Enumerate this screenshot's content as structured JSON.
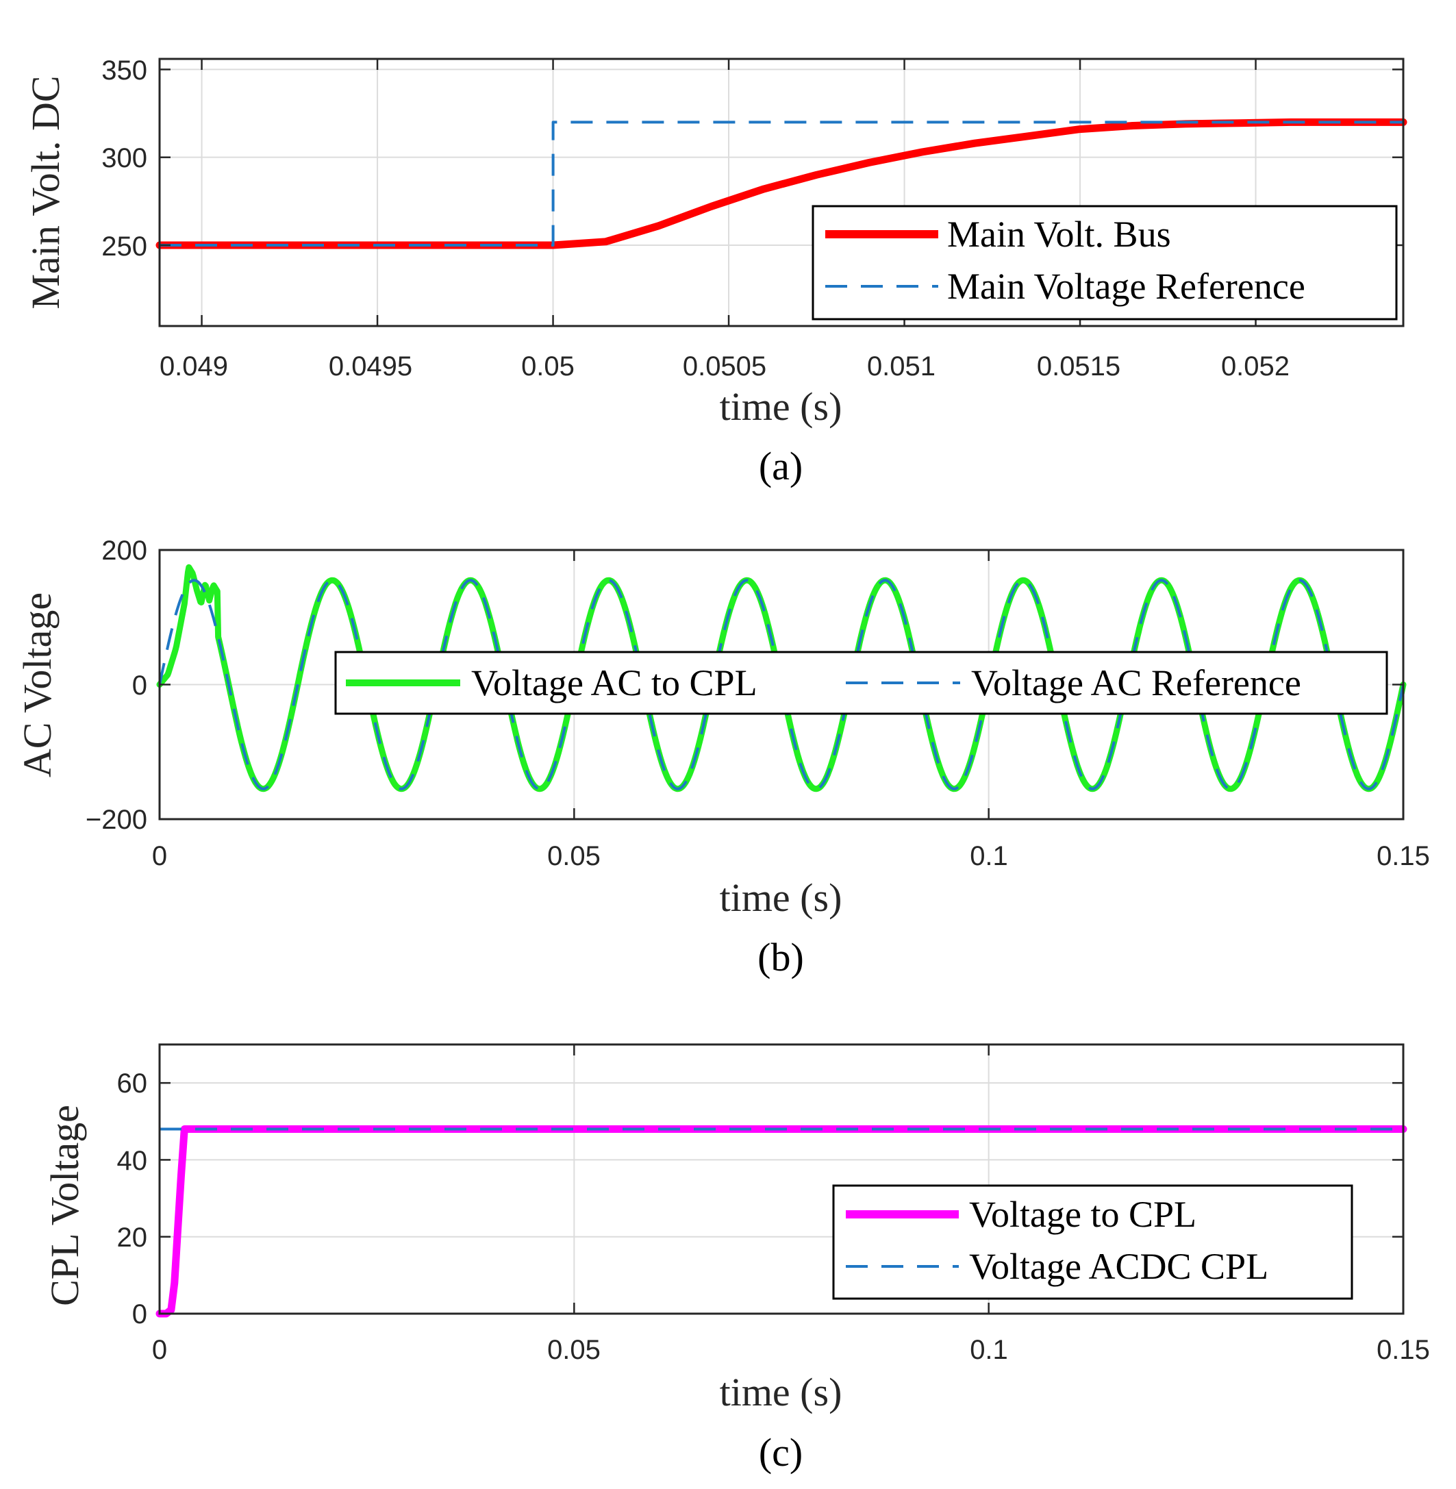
{
  "colors": {
    "main_bus": "#ff0000",
    "reference": "#1f77c4",
    "ac_voltage": "#22ee22",
    "cpl_voltage": "#ff00ff",
    "grid": "#dcdcdc",
    "axes": "#262626"
  },
  "chart_data": [
    {
      "type": "line",
      "caption": "(a)",
      "xlabel": "time (s)",
      "ylabel": "Main Volt. DC",
      "xlim": [
        0.04888,
        0.05242
      ],
      "ylim": [
        204,
        356
      ],
      "xticks": [
        0.049,
        0.0495,
        0.05,
        0.0505,
        0.051,
        0.0515,
        0.052
      ],
      "xtick_labels": [
        "0.049",
        "0.0495",
        "0.05",
        "0.0505",
        "0.051",
        "0.0515",
        "0.052"
      ],
      "yticks": [
        250,
        300,
        350
      ],
      "ytick_labels": [
        "250",
        "300",
        "350"
      ],
      "grid": true,
      "legend_position": "bottom-right",
      "series": [
        {
          "name": "Main Volt. Bus",
          "style": "solid",
          "color": "#ff0000",
          "x": [
            0.04888,
            0.05,
            0.05015,
            0.0503,
            0.05045,
            0.0506,
            0.05075,
            0.0509,
            0.05105,
            0.0512,
            0.05135,
            0.0515,
            0.05165,
            0.0518,
            0.05195,
            0.0521,
            0.05242
          ],
          "y": [
            250,
            250,
            252,
            261,
            272,
            282,
            290,
            297,
            303,
            308,
            312,
            316,
            318,
            319,
            319.5,
            320,
            320
          ]
        },
        {
          "name": "Main Voltage Reference",
          "style": "dashed",
          "color": "#1f77c4",
          "x": [
            0.04888,
            0.05,
            0.05,
            0.05242
          ],
          "y": [
            250,
            250,
            320,
            320
          ]
        }
      ]
    },
    {
      "type": "line",
      "caption": "(b)",
      "xlabel": "time (s)",
      "ylabel": "AC Voltage",
      "xlim": [
        0,
        0.15
      ],
      "ylim": [
        -200,
        200
      ],
      "xticks": [
        0,
        0.05,
        0.1,
        0.15
      ],
      "xtick_labels": [
        "0",
        "0.05",
        "0.1",
        "0.15"
      ],
      "yticks": [
        -200,
        0,
        200
      ],
      "ytick_labels": [
        "−200",
        "0",
        "200"
      ],
      "grid": true,
      "legend_position": "center",
      "series": [
        {
          "name": "Voltage AC to CPL",
          "style": "solid",
          "color": "#22ee22",
          "amplitude": 155,
          "frequency_hz": 60,
          "t_start": 0,
          "t_end": 0.15,
          "startup_transient": {
            "x": [
              0,
              0.001,
              0.002,
              0.003,
              0.0035,
              0.004,
              0.0045,
              0.005,
              0.0055,
              0.006,
              0.0065,
              0.007
            ],
            "y": [
              0,
              15,
              55,
              120,
              175,
              165,
              140,
              120,
              150,
              125,
              148,
              138
            ]
          }
        },
        {
          "name": "Voltage AC Reference",
          "style": "dashed",
          "color": "#1f77c4",
          "amplitude": 155,
          "frequency_hz": 60,
          "t_start": 0,
          "t_end": 0.15
        }
      ]
    },
    {
      "type": "line",
      "caption": "(c)",
      "xlabel": "time (s)",
      "ylabel": "CPL Voltage",
      "xlim": [
        0,
        0.15
      ],
      "ylim": [
        0,
        70
      ],
      "xticks": [
        0,
        0.05,
        0.1,
        0.15
      ],
      "xtick_labels": [
        "0",
        "0.05",
        "0.1",
        "0.15"
      ],
      "yticks": [
        0,
        20,
        40,
        60
      ],
      "ytick_labels": [
        "0",
        "20",
        "40",
        "60"
      ],
      "grid": true,
      "legend_position": "bottom-right",
      "series": [
        {
          "name": "Voltage to CPL",
          "style": "solid",
          "color": "#ff00ff",
          "x": [
            0,
            0.0008,
            0.0014,
            0.0018,
            0.0022,
            0.0026,
            0.003,
            0.15
          ],
          "y": [
            0,
            0,
            1,
            8,
            22,
            36,
            48,
            48
          ]
        },
        {
          "name": "Voltage ACDC CPL",
          "style": "dashed",
          "color": "#1f77c4",
          "x": [
            0,
            0.15
          ],
          "y": [
            48,
            48
          ]
        }
      ]
    }
  ]
}
